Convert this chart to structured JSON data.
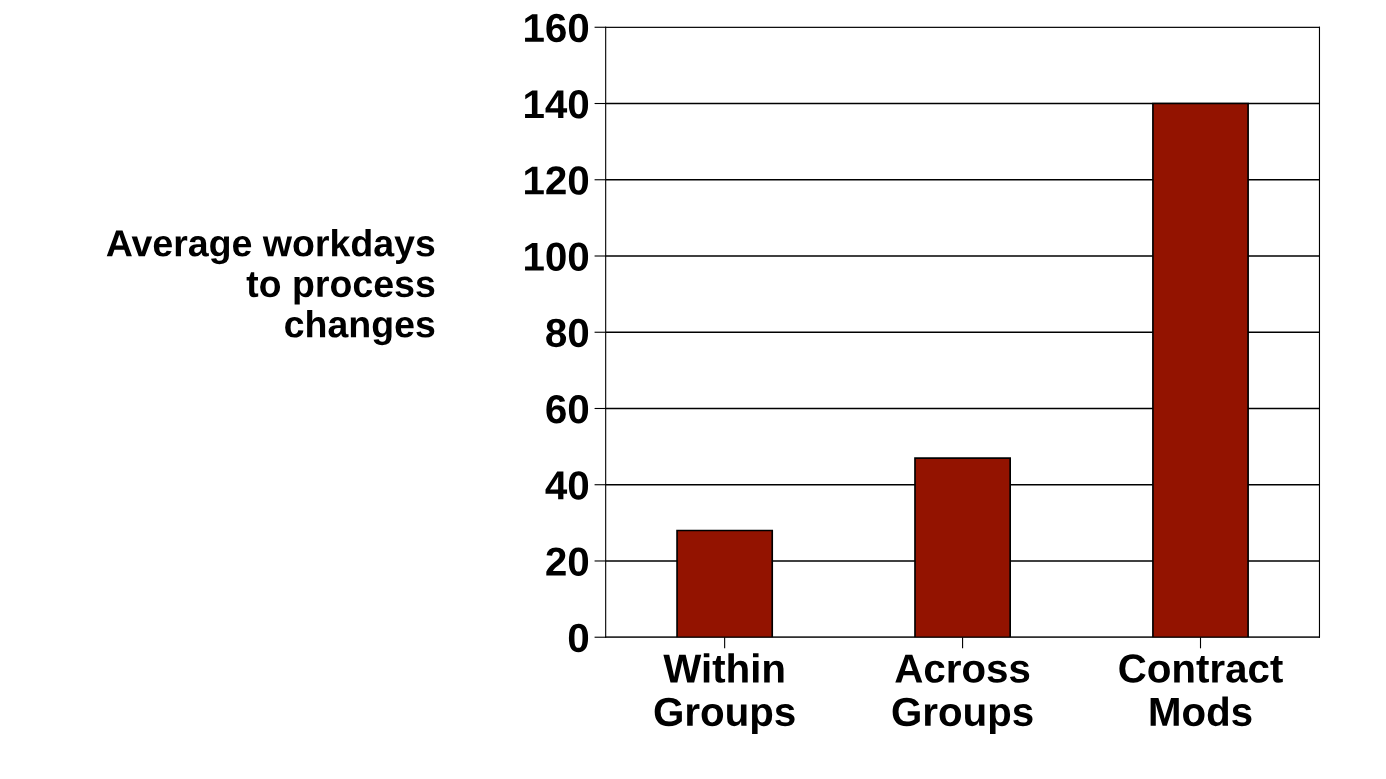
{
  "chart_data": {
    "type": "bar",
    "ylabel": "Average workdays\nto process\nchanges",
    "categories": [
      "Within\nGroups",
      "Across\nGroups",
      "Contract\nMods"
    ],
    "values": [
      28,
      47,
      140
    ],
    "color": "#931300",
    "ylim": [
      0,
      160
    ],
    "yticks": [
      0,
      20,
      40,
      60,
      80,
      100,
      120,
      140,
      160
    ],
    "grid": "y"
  }
}
